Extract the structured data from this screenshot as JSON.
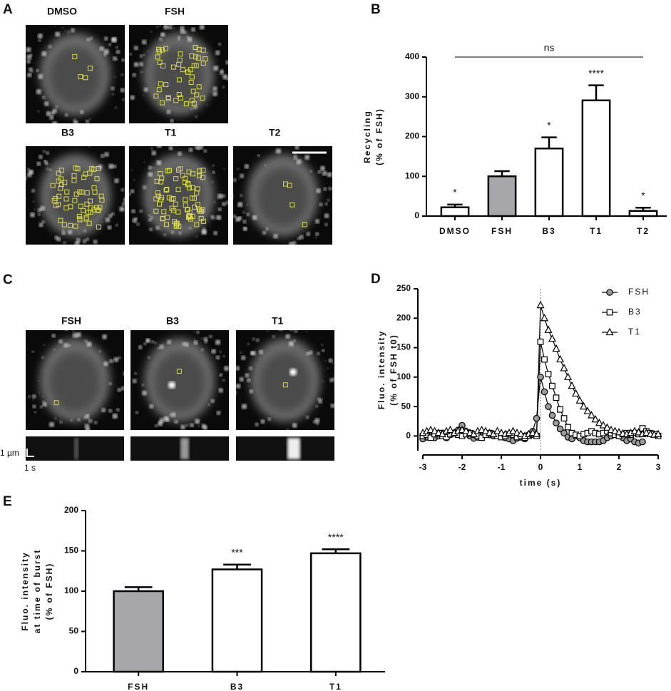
{
  "panels": {
    "A": {
      "letter": "A",
      "images": [
        "DMSO",
        "FSH",
        "B3",
        "T1",
        "T2"
      ]
    },
    "C": {
      "letter": "C",
      "images": [
        "FSH",
        "B3",
        "T1"
      ],
      "scale_y": "1 µm",
      "scale_x": "1 s"
    }
  },
  "chart_data": [
    {
      "type": "bar",
      "panel": "B",
      "categories": [
        "DMSO",
        "FSH",
        "B3",
        "T1",
        "T2"
      ],
      "values": [
        22,
        100,
        170,
        291,
        13
      ],
      "errors": [
        7,
        13,
        28,
        38,
        8
      ],
      "colors": [
        "#ffffff",
        "#a7a6ab",
        "#ffffff",
        "#ffffff",
        "#ffffff"
      ],
      "annotations": [
        "*",
        null,
        "*",
        "****",
        "*"
      ],
      "bracket": {
        "label": "ns",
        "span": [
          0,
          4
        ]
      },
      "ylabel": [
        "Recycling",
        "(% of FSH)"
      ],
      "ylim": [
        0,
        400
      ],
      "yticks": [
        0,
        100,
        200,
        300,
        400
      ]
    },
    {
      "type": "line",
      "panel": "D",
      "x": [
        -3.0,
        -2.9,
        -2.8,
        -2.7,
        -2.6,
        -2.5,
        -2.4,
        -2.3,
        -2.2,
        -2.1,
        -2.0,
        -1.9,
        -1.8,
        -1.7,
        -1.6,
        -1.5,
        -1.4,
        -1.3,
        -1.2,
        -1.1,
        -1.0,
        -0.9,
        -0.8,
        -0.7,
        -0.6,
        -0.5,
        -0.4,
        -0.3,
        -0.2,
        -0.1,
        0.0,
        0.1,
        0.2,
        0.3,
        0.4,
        0.5,
        0.6,
        0.7,
        0.8,
        0.9,
        1.0,
        1.1,
        1.2,
        1.3,
        1.4,
        1.5,
        1.6,
        1.7,
        1.8,
        1.9,
        2.0,
        2.1,
        2.2,
        2.3,
        2.4,
        2.5,
        2.6,
        2.7,
        2.8,
        2.9,
        3.0
      ],
      "series": [
        {
          "name": "FSH",
          "marker": "circle",
          "color": "#9a9a9a",
          "values": [
            -5,
            -2,
            3,
            -3,
            0,
            5,
            -3,
            2,
            5,
            10,
            18,
            8,
            0,
            -4,
            -2,
            3,
            5,
            2,
            0,
            3,
            2,
            -3,
            -5,
            -8,
            -4,
            -2,
            -5,
            2,
            8,
            30,
            100,
            75,
            50,
            35,
            22,
            12,
            5,
            -2,
            -5,
            0,
            -3,
            -8,
            -10,
            -10,
            -10,
            -10,
            -8,
            -3,
            0,
            3,
            0,
            -3,
            -8,
            -5,
            -10,
            -12,
            -10,
            null,
            null,
            null,
            null
          ]
        },
        {
          "name": "B3",
          "marker": "square",
          "color": "#ffffff",
          "values": [
            0,
            2,
            -3,
            3,
            5,
            0,
            -2,
            3,
            5,
            2,
            0,
            3,
            5,
            2,
            0,
            -3,
            2,
            5,
            3,
            0,
            -2,
            0,
            3,
            2,
            -2,
            0,
            -3,
            0,
            2,
            0,
            160,
            130,
            105,
            85,
            65,
            45,
            30,
            15,
            5,
            2,
            0,
            3,
            5,
            8,
            5,
            3,
            5,
            8,
            5,
            2,
            0,
            3,
            5,
            2,
            5,
            3,
            13,
            8,
            5,
            3,
            0
          ]
        },
        {
          "name": "T1",
          "marker": "triangle",
          "color": "#ffffff",
          "values": [
            5,
            8,
            10,
            8,
            5,
            3,
            8,
            10,
            5,
            8,
            10,
            8,
            5,
            3,
            8,
            10,
            8,
            5,
            3,
            8,
            5,
            3,
            5,
            8,
            5,
            3,
            0,
            3,
            5,
            3,
            222,
            200,
            180,
            165,
            148,
            130,
            115,
            100,
            85,
            72,
            60,
            50,
            42,
            35,
            28,
            22,
            18,
            14,
            10,
            8,
            6,
            4,
            3,
            5,
            8,
            6,
            3,
            5,
            3,
            2,
            3
          ]
        }
      ],
      "vline": 0,
      "xlabel": "time (s)",
      "ylabel": [
        "Fluo. intensity",
        "(% of FSH t0)"
      ],
      "xlim": [
        -3,
        3
      ],
      "xticks": [
        -3,
        -2,
        -1,
        0,
        1,
        2,
        3
      ],
      "ylim": [
        -25,
        250
      ],
      "yticks": [
        0,
        50,
        100,
        150,
        200,
        250
      ],
      "legend": "top-right"
    },
    {
      "type": "bar",
      "panel": "E",
      "categories": [
        "FSH",
        "B3",
        "T1"
      ],
      "values": [
        100,
        127,
        147
      ],
      "errors": [
        5,
        6,
        5
      ],
      "colors": [
        "#a7a6ab",
        "#ffffff",
        "#ffffff"
      ],
      "annotations": [
        null,
        "***",
        "****"
      ],
      "ylabel": [
        "Fluo. intensity",
        "at time of burst",
        "(% of FSH)"
      ],
      "ylim": [
        0,
        200
      ],
      "yticks": [
        0,
        50,
        100,
        150,
        200
      ]
    }
  ]
}
